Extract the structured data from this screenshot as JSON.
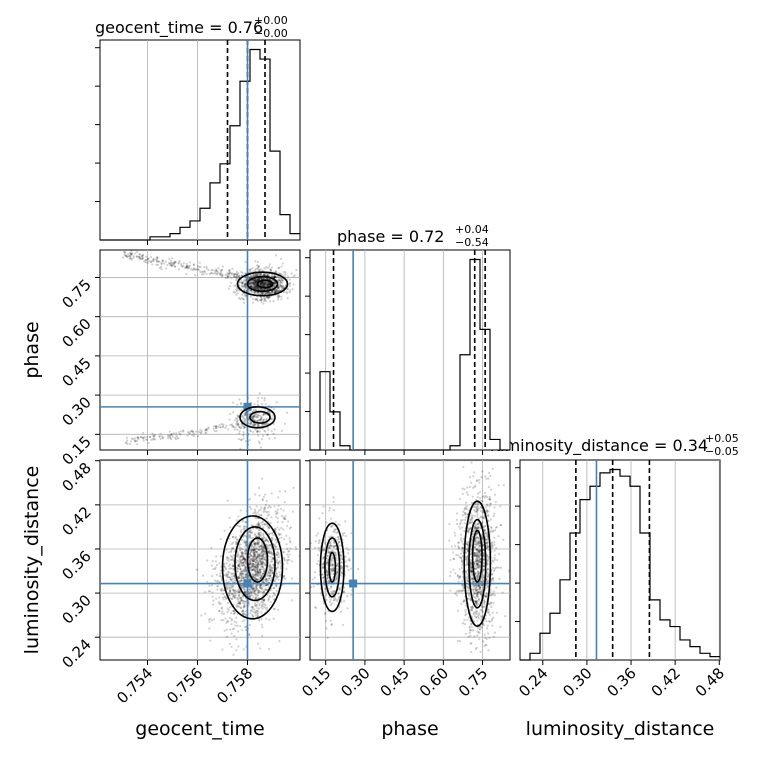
{
  "chart_data": {
    "type": "corner",
    "parameters": [
      "geocent_time",
      "phase",
      "luminosity_distance"
    ],
    "titles": [
      {
        "param": "geocent_time",
        "value": "0.76",
        "plus": "+0.00",
        "minus": "−0.00"
      },
      {
        "param": "phase",
        "value": "0.72",
        "plus": "+0.04",
        "minus": "−0.54"
      },
      {
        "param": "luminosity_distance",
        "value": "0.34",
        "plus": "+0.05",
        "minus": "−0.05"
      }
    ],
    "axis_ranges": {
      "geocent_time": [
        0.7521,
        0.7601
      ],
      "phase": [
        0.09,
        0.855
      ],
      "luminosity_distance": [
        0.209,
        0.481
      ]
    },
    "ticks": {
      "geocent_time": [
        "0.754",
        "0.756",
        "0.758"
      ],
      "phase": [
        "0.15",
        "0.30",
        "0.45",
        "0.60",
        "0.75"
      ],
      "luminosity_distance": [
        "0.24",
        "0.30",
        "0.36",
        "0.42",
        "0.48"
      ]
    },
    "truth": {
      "geocent_time": 0.758,
      "phase": 0.255,
      "luminosity_distance": 0.313
    },
    "quantiles": {
      "geocent_time": [
        0.7572,
        0.758,
        0.7587
      ],
      "phase": [
        0.18,
        0.72,
        0.76
      ],
      "luminosity_distance": [
        0.285,
        0.335,
        0.385
      ]
    },
    "histograms": {
      "geocent_time": {
        "edges": [
          0.7521,
          0.7525,
          0.7529,
          0.7533,
          0.7537,
          0.7541,
          0.7545,
          0.7549,
          0.7553,
          0.7557,
          0.7561,
          0.7565,
          0.7569,
          0.7573,
          0.7577,
          0.7581,
          0.7585,
          0.7589,
          0.7593,
          0.7597,
          0.7601
        ],
        "counts": [
          0,
          0,
          0,
          0,
          0,
          1,
          1,
          2,
          4,
          6,
          10,
          18,
          24,
          36,
          50,
          60,
          57,
          28,
          8,
          2
        ]
      },
      "phase": {
        "edges": [
          0.09,
          0.12825,
          0.1665,
          0.20475,
          0.243,
          0.28125,
          0.3195,
          0.35775,
          0.396,
          0.43425,
          0.4725,
          0.51075,
          0.549,
          0.58725,
          0.6255,
          0.66375,
          0.702,
          0.74025,
          0.7785,
          0.81675,
          0.855
        ],
        "counts": [
          0,
          37,
          18,
          2,
          0,
          0,
          0,
          0,
          0,
          0,
          0,
          0,
          0,
          0,
          2,
          45,
          90,
          57,
          5,
          0
        ]
      },
      "luminosity_distance": {
        "edges": [
          0.209,
          0.2226,
          0.2362,
          0.2498,
          0.2634,
          0.277,
          0.2906,
          0.3042,
          0.3178,
          0.3314,
          0.345,
          0.3586,
          0.3722,
          0.3858,
          0.3994,
          0.413,
          0.4266,
          0.4402,
          0.4538,
          0.4674,
          0.481
        ],
        "counts": [
          0,
          2,
          8,
          14,
          24,
          38,
          48,
          52,
          56,
          57,
          55,
          52,
          38,
          18,
          12,
          10,
          6,
          4,
          2,
          1
        ]
      }
    },
    "grid": true
  }
}
